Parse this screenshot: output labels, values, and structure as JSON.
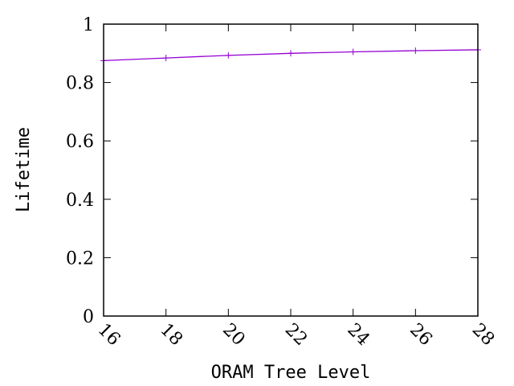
{
  "chart_data": {
    "type": "line",
    "title": "",
    "xlabel": "ORAM Tree Level",
    "ylabel": "Lifetime",
    "xlim": [
      16,
      28
    ],
    "ylim": [
      0,
      1
    ],
    "x_ticks": [
      "16",
      "18",
      "20",
      "22",
      "24",
      "26",
      "28"
    ],
    "y_ticks": [
      "0",
      "0.2",
      "0.4",
      "0.6",
      "0.8",
      "1"
    ],
    "grid": false,
    "legend": "none",
    "series": [
      {
        "x": [
          16,
          18,
          20,
          22,
          24,
          26,
          28
        ],
        "values": [
          0.875,
          0.884,
          0.893,
          0.9,
          0.905,
          0.909,
          0.912
        ],
        "color": "#9400d3",
        "marker": "plus"
      }
    ]
  }
}
